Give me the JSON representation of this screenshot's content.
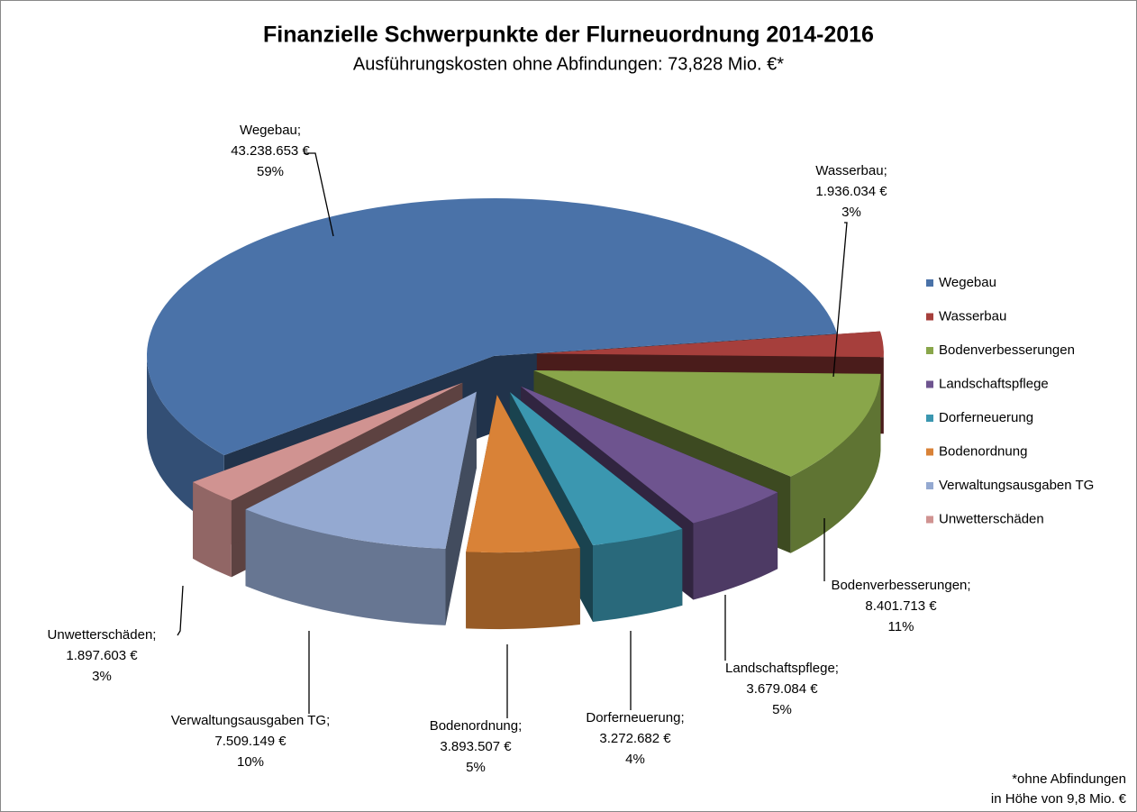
{
  "chart_data": {
    "type": "pie",
    "title": "Finanzielle Schwerpunkte der Flurneuordnung 2014-2016",
    "subtitle": "Ausführungskosten ohne Abfindungen:  73,828 Mio. €*",
    "footnote": [
      "*ohne Abfindungen",
      "in Höhe von 9,8 Mio. €"
    ],
    "separator": ";",
    "categories": [
      "Wegebau",
      "Wasserbau",
      "Bodenverbesserungen",
      "Landschaftspflege",
      "Dorferneuerung",
      "Bodenordnung",
      "Verwaltungsausgaben TG",
      "Unwetterschäden"
    ],
    "values": [
      43238653,
      1936034,
      8401713,
      3679084,
      3272682,
      3893507,
      7509149,
      1897603
    ],
    "value_labels": [
      "43.238.653 €",
      "1.936.034 €",
      "8.401.713 €",
      "3.679.084 €",
      "3.272.682 €",
      "3.893.507 €",
      "7.509.149 €",
      "1.897.603 €"
    ],
    "percents": [
      59,
      3,
      11,
      5,
      4,
      5,
      10,
      3
    ],
    "percent_labels": [
      "59%",
      "3%",
      "11%",
      "5%",
      "4%",
      "5%",
      "10%",
      "3%"
    ],
    "colors": [
      "#4a72a8",
      "#a63f3c",
      "#89a64a",
      "#6e548f",
      "#3b97b0",
      "#d98237",
      "#94a9d1",
      "#d09391"
    ],
    "legend": "right"
  }
}
